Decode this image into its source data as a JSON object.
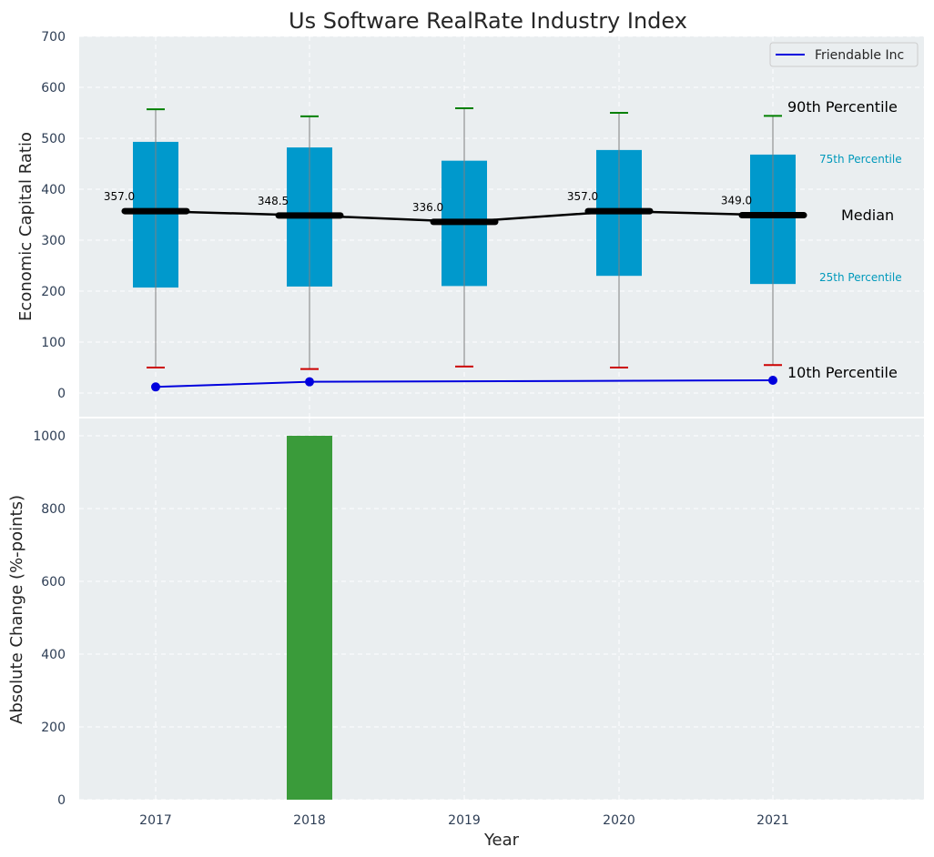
{
  "chart_data": [
    {
      "type": "box",
      "title": "Us Software RealRate Industry Index",
      "ylabel": "Economic Capital Ratio",
      "xlabel": "",
      "ylim": [
        -50,
        700
      ],
      "yticks": [
        0,
        100,
        200,
        300,
        400,
        500,
        600,
        700
      ],
      "grid": true,
      "legend_position": "top-right",
      "categories": [
        "2017",
        "2018",
        "2019",
        "2020",
        "2021"
      ],
      "percentiles": {
        "p10": [
          50,
          47,
          52,
          50,
          55
        ],
        "p25": [
          207,
          209,
          210,
          230,
          214
        ],
        "median": [
          357.0,
          348.5,
          336.0,
          357.0,
          349.0
        ],
        "p75": [
          493,
          482,
          456,
          477,
          468
        ],
        "p90": [
          557,
          543,
          559,
          550,
          544
        ]
      },
      "median_labels": [
        "357.0",
        "348.5",
        "336.0",
        "357.0",
        "349.0"
      ],
      "series": [
        {
          "name": "Friendable Inc",
          "x": [
            "2017",
            "2018",
            "2021"
          ],
          "values": [
            12,
            22,
            25
          ],
          "color": "#0000dd"
        }
      ],
      "annotations": {
        "p90": "90th Percentile",
        "p75": "75th Percentile",
        "median": "Median",
        "p25": "25th Percentile",
        "p10": "10th Percentile"
      },
      "colors": {
        "box": "#0099cc",
        "median": "#000000",
        "whisker": "#808080",
        "p90_cap": "#008000",
        "p10_cap": "#cc0000",
        "panel_bg": "#eaeef0",
        "small_annotation": "#0099bb"
      }
    },
    {
      "type": "bar",
      "xlabel": "Year",
      "ylabel": "Absolute Change (%-points)",
      "ylim": [
        0,
        1050
      ],
      "yticks": [
        0,
        200,
        400,
        600,
        800,
        1000
      ],
      "grid": true,
      "categories": [
        "2017",
        "2018",
        "2019",
        "2020",
        "2021"
      ],
      "values": [
        0,
        1000,
        0,
        0,
        0
      ],
      "color": "#3a9b3a"
    }
  ]
}
